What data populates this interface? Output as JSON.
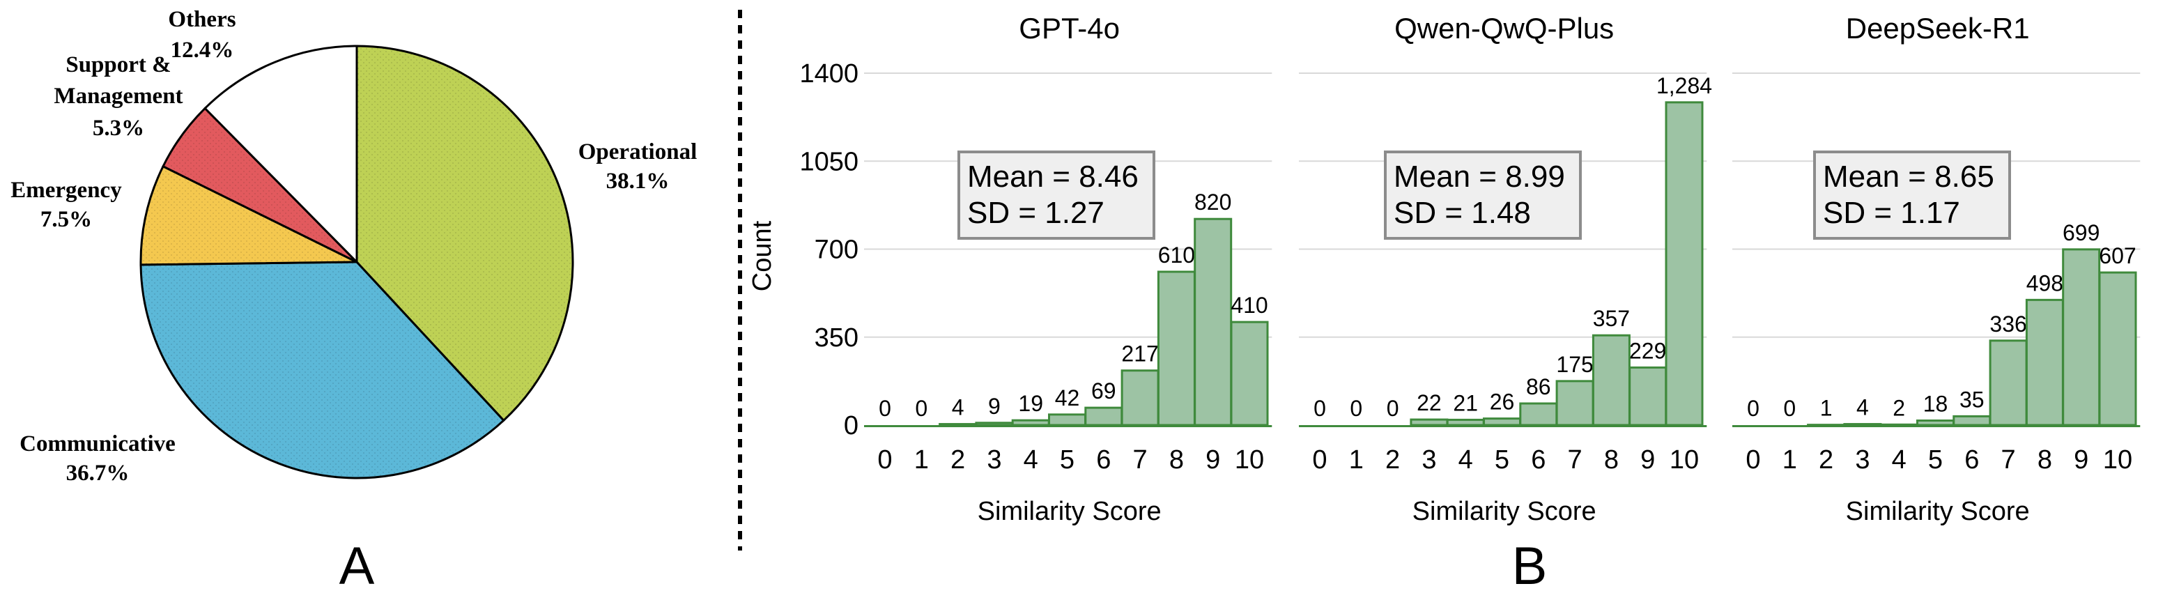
{
  "colors": {
    "operational": "#bed155",
    "communicative": "#5cb8d8",
    "emergency": "#f4c84f",
    "support": "#e25a5e",
    "others": "#ffffff",
    "bar_fill": "#9dc3a4",
    "bar_stroke": "#3f8a3c",
    "stats_fill": "#efefef",
    "stats_stroke": "#8c8c8c",
    "grid": "#d9d9d9"
  },
  "panel_labels": {
    "a": "A",
    "b": "B"
  },
  "chart_data": [
    {
      "type": "pie",
      "title": "",
      "slices": [
        {
          "label": "Operational",
          "pct_label": "38.1%",
          "value": 38.1,
          "color_key": "operational"
        },
        {
          "label": "Communicative",
          "pct_label": "36.7%",
          "value": 36.7,
          "color_key": "communicative"
        },
        {
          "label": "Emergency",
          "pct_label": "7.5%",
          "value": 7.5,
          "color_key": "emergency"
        },
        {
          "label_lines": [
            "Support &",
            "Management"
          ],
          "pct_label": "5.3%",
          "value": 5.3,
          "color_key": "support"
        },
        {
          "label": "Others",
          "pct_label": "12.4%",
          "value": 12.4,
          "color_key": "others"
        }
      ],
      "start": "12 o'clock",
      "direction": "clockwise"
    },
    {
      "type": "bar",
      "title": "GPT-4o",
      "xlabel": "Similarity Score",
      "ylabel": "Count",
      "categories": [
        "0",
        "1",
        "2",
        "3",
        "4",
        "5",
        "6",
        "7",
        "8",
        "9",
        "10"
      ],
      "values": [
        0,
        0,
        4,
        9,
        19,
        42,
        69,
        217,
        610,
        820,
        410
      ],
      "value_labels": [
        "0",
        "0",
        "4",
        "9",
        "19",
        "42",
        "69",
        "217",
        "610",
        "820",
        "410"
      ],
      "ylim": [
        0,
        1400
      ],
      "yticks": [
        0,
        350,
        700,
        1050,
        1400
      ],
      "ytick_labels": [
        "0",
        "350",
        "700",
        "1050",
        "1400"
      ],
      "grid": true,
      "stats": [
        "Mean = 8.46",
        "SD = 1.27"
      ]
    },
    {
      "type": "bar",
      "title": "Qwen-QwQ-Plus",
      "xlabel": "Similarity Score",
      "categories": [
        "0",
        "1",
        "2",
        "3",
        "4",
        "5",
        "6",
        "7",
        "8",
        "9",
        "10"
      ],
      "values": [
        0,
        0,
        0,
        22,
        21,
        26,
        86,
        175,
        357,
        229,
        1284
      ],
      "value_labels": [
        "0",
        "0",
        "0",
        "22",
        "21",
        "26",
        "86",
        "175",
        "357",
        "229",
        "1,284"
      ],
      "ylim": [
        0,
        1400
      ],
      "grid": true,
      "stats": [
        "Mean = 8.99",
        "SD = 1.48"
      ]
    },
    {
      "type": "bar",
      "title": "DeepSeek-R1",
      "xlabel": "Similarity Score",
      "categories": [
        "0",
        "1",
        "2",
        "3",
        "4",
        "5",
        "6",
        "7",
        "8",
        "9",
        "10"
      ],
      "values": [
        0,
        0,
        1,
        4,
        2,
        18,
        35,
        336,
        498,
        699,
        607
      ],
      "value_labels": [
        "0",
        "0",
        "1",
        "4",
        "2",
        "18",
        "35",
        "336",
        "498",
        "699",
        "607"
      ],
      "ylim": [
        0,
        1400
      ],
      "grid": true,
      "stats": [
        "Mean = 8.65",
        "SD = 1.17"
      ]
    }
  ]
}
